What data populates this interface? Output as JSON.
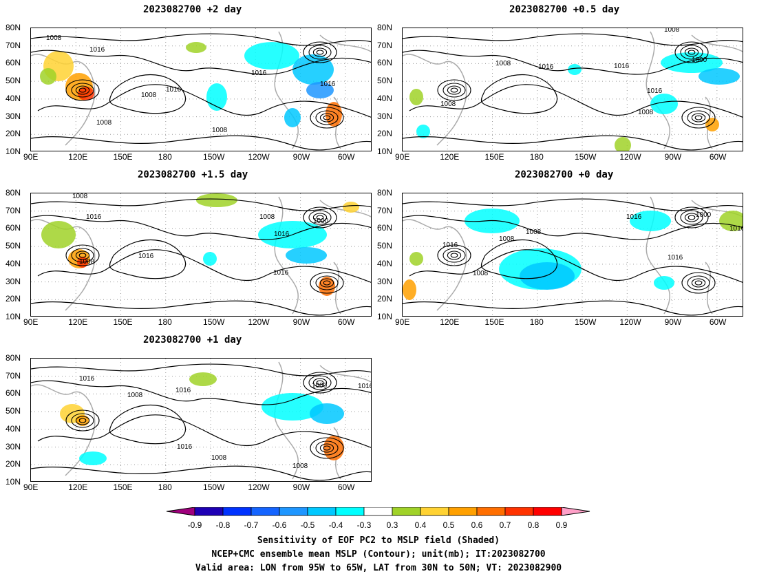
{
  "panels": [
    {
      "id": "p1",
      "title": "2023082700 +2 day",
      "labels": [
        "1008",
        "1016",
        "1008",
        "1016",
        "1008",
        "1016",
        "1008",
        "1016"
      ]
    },
    {
      "id": "p2",
      "title": "2023082700 +0.5 day",
      "labels": [
        "1008",
        "1008",
        "1016",
        "1008",
        "1000",
        "1016",
        "1008",
        "1016"
      ]
    },
    {
      "id": "p3",
      "title": "2023082700 +1.5 day",
      "labels": [
        "1008",
        "1016",
        "1008",
        "1016",
        "1008",
        "1016",
        "1000",
        "1016"
      ]
    },
    {
      "id": "p4",
      "title": "2023082700 +0 day",
      "labels": [
        "1016",
        "1008",
        "1016",
        "1008",
        "1016",
        "1008",
        "1000",
        "1016"
      ]
    },
    {
      "id": "p5",
      "title": "2023082700 +1 day",
      "labels": [
        "1016",
        "1008",
        "1016",
        "1016",
        "1008",
        "1000",
        "1016",
        "1008"
      ]
    }
  ],
  "lon_ticks": [
    "90E",
    "120E",
    "150E",
    "180",
    "150W",
    "120W",
    "90W",
    "60W"
  ],
  "lat_ticks": [
    "80N",
    "70N",
    "60N",
    "50N",
    "40N",
    "30N",
    "20N",
    "10N"
  ],
  "colorbar": {
    "labels": [
      "-0.9",
      "-0.8",
      "-0.7",
      "-0.6",
      "-0.5",
      "-0.4",
      "-0.3",
      "0.3",
      "0.4",
      "0.5",
      "0.6",
      "0.7",
      "0.8",
      "0.9"
    ],
    "colors": [
      "#a0007d",
      "#1e00b4",
      "#0032ff",
      "#1464ff",
      "#1e96ff",
      "#00c8ff",
      "#00ffff",
      "#ffffff",
      "#a0d228",
      "#ffd232",
      "#ffa000",
      "#ff6e00",
      "#ff3200",
      "#ff0000",
      "#ffa0c8"
    ]
  },
  "footer": {
    "line1": "Sensitivity of EOF PC2 to MSLP field (Shaded)",
    "line2": "NCEP+CMC ensemble mean MSLP (Contour); unit(mb); IT:2023082700",
    "line3": "Valid area: LON from 95W to 65W, LAT from 30N to 50N; VT: 2023082900"
  }
}
